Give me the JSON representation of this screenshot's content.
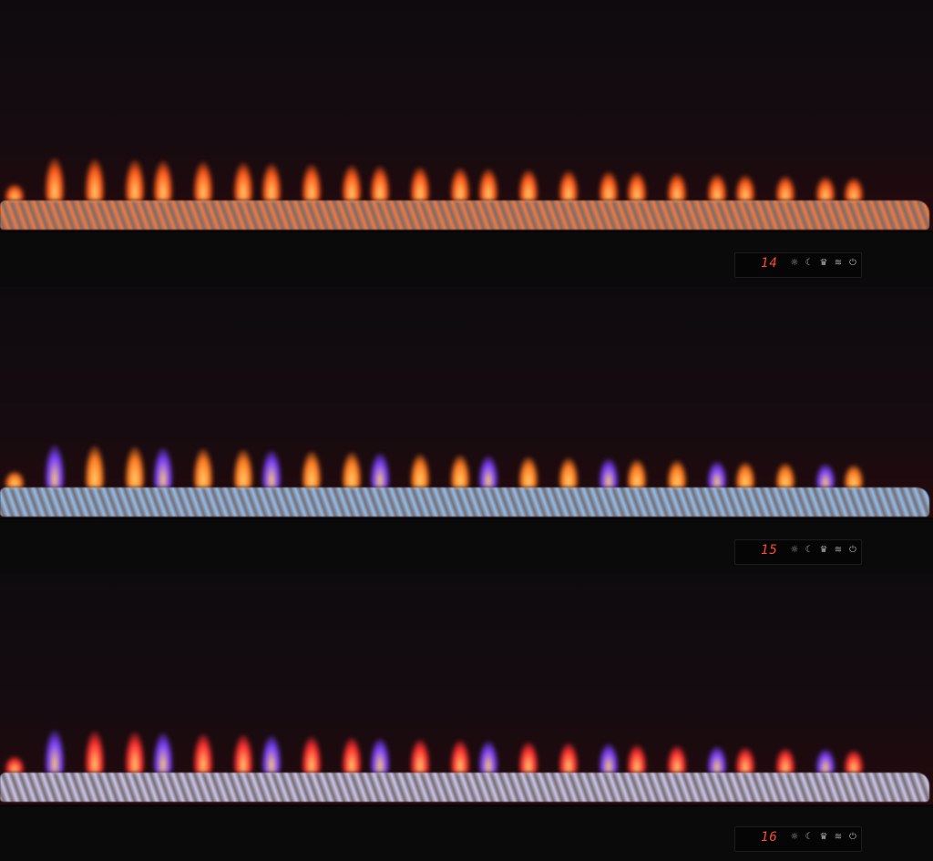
{
  "panels": [
    {
      "temperature": "14",
      "flame_color": "#ff5a1a",
      "bed_color": "#f07a40",
      "mode": "orange"
    },
    {
      "temperature": "15",
      "flame_color": "#ff7a20",
      "bed_color": "#8fc0f0",
      "mode": "blue-bed"
    },
    {
      "temperature": "16",
      "flame_color": "#ff3030",
      "bed_color": "#c8c8f0",
      "mode": "white-bed"
    }
  ],
  "control_icons": [
    "brightness-icon",
    "timer-moon-icon",
    "flame-effect-icon",
    "heat-icon",
    "power-icon"
  ]
}
